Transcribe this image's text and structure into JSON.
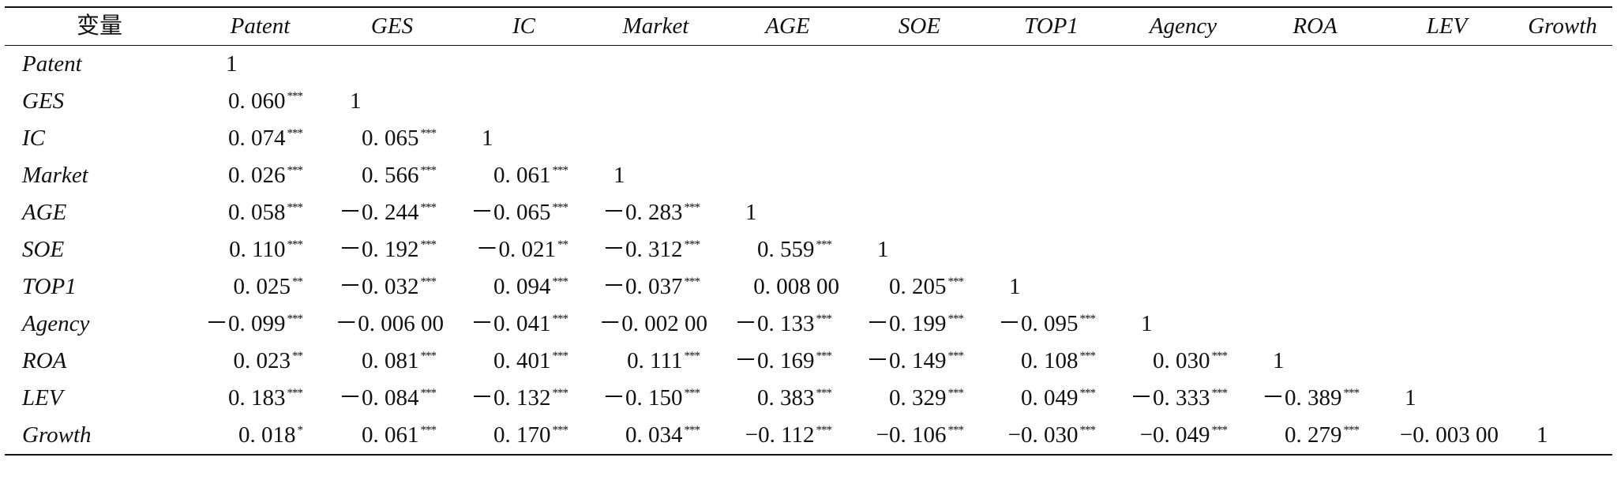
{
  "table": {
    "corner_label": "变量",
    "columns": [
      "Patent",
      "GES",
      "IC",
      "Market",
      "AGE",
      "SOE",
      "TOP1",
      "Agency",
      "ROA",
      "LEV",
      "Growth"
    ],
    "rows": [
      {
        "label": "Patent",
        "cells": [
          {
            "v": "1",
            "s": ""
          }
        ]
      },
      {
        "label": "GES",
        "cells": [
          {
            "v": "0. 060",
            "s": "***"
          },
          {
            "v": "1",
            "s": ""
          }
        ]
      },
      {
        "label": "IC",
        "cells": [
          {
            "v": "0. 074",
            "s": "***"
          },
          {
            "v": "0. 065",
            "s": "***"
          },
          {
            "v": "1",
            "s": ""
          }
        ]
      },
      {
        "label": "Market",
        "cells": [
          {
            "v": "0. 026",
            "s": "***"
          },
          {
            "v": "0. 566",
            "s": "***"
          },
          {
            "v": "0. 061",
            "s": "***"
          },
          {
            "v": "1",
            "s": ""
          }
        ]
      },
      {
        "label": "AGE",
        "cells": [
          {
            "v": "0. 058",
            "s": "***"
          },
          {
            "v": "－0. 244",
            "s": "***"
          },
          {
            "v": "－0. 065",
            "s": "***"
          },
          {
            "v": "－0. 283",
            "s": "***"
          },
          {
            "v": "1",
            "s": ""
          }
        ]
      },
      {
        "label": "SOE",
        "cells": [
          {
            "v": "0. 110",
            "s": "***"
          },
          {
            "v": "－0. 192",
            "s": "***"
          },
          {
            "v": "－0. 021",
            "s": "**"
          },
          {
            "v": "－0. 312",
            "s": "***"
          },
          {
            "v": "0. 559",
            "s": "***"
          },
          {
            "v": "1",
            "s": ""
          }
        ]
      },
      {
        "label": "TOP1",
        "cells": [
          {
            "v": "0. 025",
            "s": "**"
          },
          {
            "v": "－0. 032",
            "s": "***"
          },
          {
            "v": "0. 094",
            "s": "***"
          },
          {
            "v": "－0. 037",
            "s": "***"
          },
          {
            "v": "0. 008 00",
            "s": ""
          },
          {
            "v": "0. 205",
            "s": "***"
          },
          {
            "v": "1",
            "s": ""
          }
        ]
      },
      {
        "label": "Agency",
        "cells": [
          {
            "v": "－0. 099",
            "s": "***"
          },
          {
            "v": "－0. 006 00",
            "s": ""
          },
          {
            "v": "－0. 041",
            "s": "***"
          },
          {
            "v": "－0. 002 00",
            "s": ""
          },
          {
            "v": "－0. 133",
            "s": "***"
          },
          {
            "v": "－0. 199",
            "s": "***"
          },
          {
            "v": "－0. 095",
            "s": "***"
          },
          {
            "v": "1",
            "s": ""
          }
        ]
      },
      {
        "label": "ROA",
        "cells": [
          {
            "v": "0. 023",
            "s": "**"
          },
          {
            "v": "0. 081",
            "s": "***"
          },
          {
            "v": "0. 401",
            "s": "***"
          },
          {
            "v": "0. 111",
            "s": "***"
          },
          {
            "v": "－0. 169",
            "s": "***"
          },
          {
            "v": "－0. 149",
            "s": "***"
          },
          {
            "v": "0. 108",
            "s": "***"
          },
          {
            "v": "0. 030",
            "s": "***"
          },
          {
            "v": "1",
            "s": ""
          }
        ]
      },
      {
        "label": "LEV",
        "cells": [
          {
            "v": "0. 183",
            "s": "***"
          },
          {
            "v": "－0. 084",
            "s": "***"
          },
          {
            "v": "－0. 132",
            "s": "***"
          },
          {
            "v": "－0. 150",
            "s": "***"
          },
          {
            "v": "0. 383",
            "s": "***"
          },
          {
            "v": "0. 329",
            "s": "***"
          },
          {
            "v": "0. 049",
            "s": "***"
          },
          {
            "v": "－0. 333",
            "s": "***"
          },
          {
            "v": "－0. 389",
            "s": "***"
          },
          {
            "v": "1",
            "s": ""
          }
        ]
      },
      {
        "label": "Growth",
        "cells": [
          {
            "v": "0. 018",
            "s": "*"
          },
          {
            "v": "0. 061",
            "s": "***"
          },
          {
            "v": "0. 170",
            "s": "***"
          },
          {
            "v": "0. 034",
            "s": "***"
          },
          {
            "v": "−0. 112",
            "s": "***"
          },
          {
            "v": "−0. 106",
            "s": "***"
          },
          {
            "v": "−0. 030",
            "s": "***"
          },
          {
            "v": "−0. 049",
            "s": "***"
          },
          {
            "v": "0. 279",
            "s": "***"
          },
          {
            "v": "−0. 003 00",
            "s": ""
          },
          {
            "v": "1",
            "s": ""
          }
        ]
      }
    ]
  }
}
